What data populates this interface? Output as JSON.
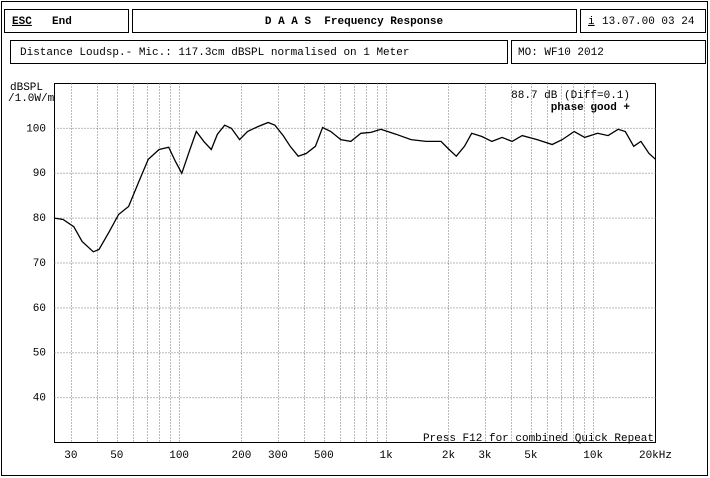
{
  "header": {
    "esc": "ESC",
    "end": "End",
    "title": "D A A S  Frequency Response",
    "info_icon": "i",
    "date": "13.07.00 03 24",
    "distance": "Distance Loudsp.- Mic.: 117.3cm dBSPL normalised on 1 Meter",
    "memo": "MO: WF10 2012"
  },
  "chart_data": {
    "type": "line",
    "log_x": true,
    "color": "#000000",
    "grid": true,
    "ylabel": [
      "dBSPL",
      "/1.0W/m"
    ],
    "annotations": [
      "88.7 dB (Diff=0.1)",
      "phase good +"
    ],
    "footer": "Press F12 for combined Quick Repeat",
    "xlim": [
      25,
      20000
    ],
    "ylim": [
      30,
      110
    ],
    "yticks": [
      40,
      50,
      60,
      70,
      80,
      90,
      100
    ],
    "xticks": [
      30,
      50,
      100,
      200,
      300,
      500,
      {
        "value": 1000,
        "label": "1k"
      },
      {
        "value": 2000,
        "label": "2k"
      },
      {
        "value": 3000,
        "label": "3k"
      },
      {
        "value": 5000,
        "label": "5k"
      },
      {
        "value": 10000,
        "label": "10k"
      },
      {
        "value": 20000,
        "label": "20kHz"
      }
    ],
    "xgrid": [
      30,
      40,
      50,
      60,
      70,
      80,
      90,
      100,
      200,
      300,
      400,
      500,
      600,
      700,
      800,
      900,
      1000,
      2000,
      3000,
      4000,
      5000,
      6000,
      7000,
      8000,
      9000,
      10000
    ],
    "x": [
      25,
      27.5,
      31,
      34,
      38.5,
      41,
      46,
      51,
      57,
      64,
      71,
      80,
      89,
      96,
      103,
      112,
      121,
      132,
      143,
      153,
      166,
      179,
      196,
      214,
      240,
      269,
      290,
      318,
      344,
      376,
      411,
      455,
      493,
      540,
      604,
      675,
      755,
      844,
      944,
      1115,
      1318,
      1557,
      1840,
      2013,
      2182,
      2390,
      2590,
      2900,
      3240,
      3630,
      4060,
      4540,
      5360,
      6340,
      7090,
      8100,
      9100,
      10500,
      11800,
      13200,
      14300,
      15700,
      17000,
      18600,
      20000
    ],
    "y": [
      80,
      79.7,
      78.1,
      74.8,
      72.5,
      73,
      77,
      80.8,
      82.6,
      88.2,
      93.1,
      95.3,
      95.8,
      92.6,
      90,
      94.9,
      99.3,
      97,
      95.3,
      98.7,
      100.7,
      100,
      97.5,
      99.3,
      100.4,
      101.3,
      100.7,
      98.4,
      96,
      93.8,
      94.4,
      96,
      100.2,
      99.3,
      97.5,
      97.1,
      98.9,
      99.1,
      99.8,
      98.7,
      97.5,
      97.1,
      97.1,
      95.3,
      93.8,
      96,
      98.9,
      98.2,
      97.1,
      98,
      97.1,
      98.4,
      97.5,
      96.4,
      97.5,
      99.3,
      98,
      98.9,
      98.4,
      99.8,
      99.3,
      96,
      97.1,
      94.4,
      93.1
    ]
  }
}
